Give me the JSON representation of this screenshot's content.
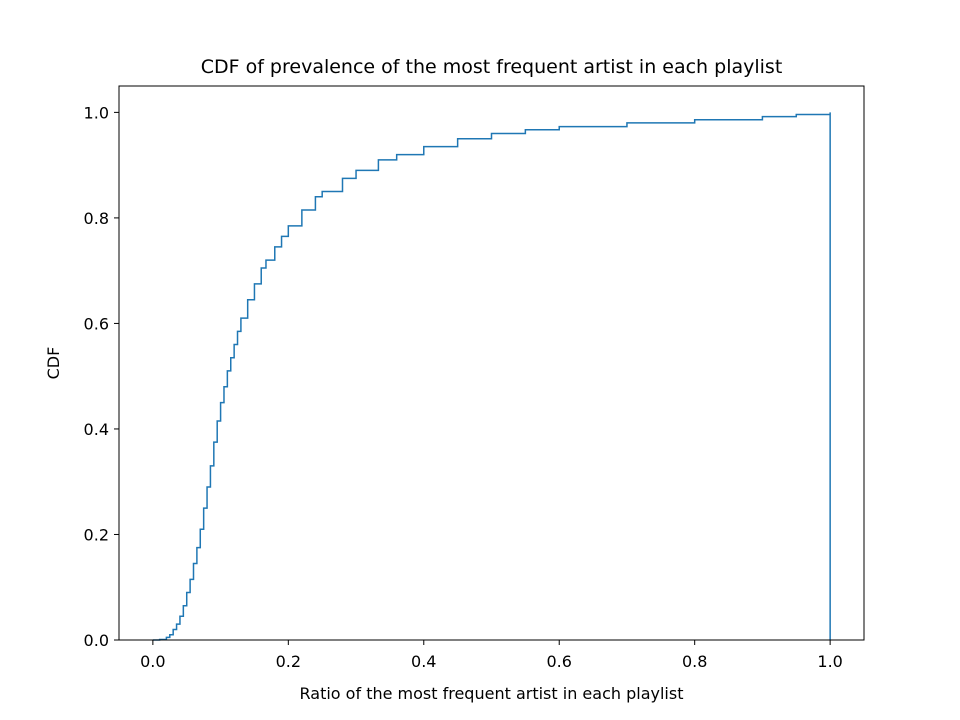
{
  "chart_data": {
    "type": "line",
    "step": true,
    "title": "CDF of prevalence of the most frequent artist in each playlist",
    "xlabel": "Ratio of the most frequent artist in each playlist",
    "ylabel": "CDF",
    "xlim": [
      -0.05,
      1.05
    ],
    "ylim": [
      0.0,
      1.05
    ],
    "grid": false,
    "legend": "none",
    "xticks": [
      0.0,
      0.2,
      0.4,
      0.6,
      0.8,
      1.0
    ],
    "xtick_labels": [
      "0.0",
      "0.2",
      "0.4",
      "0.6",
      "0.8",
      "1.0"
    ],
    "yticks": [
      0.0,
      0.2,
      0.4,
      0.6,
      0.8,
      1.0
    ],
    "ytick_labels": [
      "0.0",
      "0.2",
      "0.4",
      "0.6",
      "0.8",
      "1.0"
    ],
    "series": [
      {
        "color": "#1f77b4",
        "x": [
          0.0,
          0.01,
          0.02,
          0.025,
          0.03,
          0.035,
          0.04,
          0.045,
          0.05,
          0.055,
          0.06,
          0.065,
          0.07,
          0.075,
          0.08,
          0.085,
          0.09,
          0.095,
          0.1,
          0.105,
          0.11,
          0.115,
          0.12,
          0.125,
          0.13,
          0.14,
          0.15,
          0.16,
          0.167,
          0.18,
          0.19,
          0.2,
          0.22,
          0.24,
          0.25,
          0.28,
          0.3,
          0.333,
          0.36,
          0.4,
          0.45,
          0.5,
          0.55,
          0.6,
          0.7,
          0.8,
          0.9,
          0.95,
          1.0,
          1.0
        ],
        "y": [
          0.0,
          0.001,
          0.005,
          0.01,
          0.02,
          0.03,
          0.045,
          0.065,
          0.09,
          0.115,
          0.145,
          0.175,
          0.21,
          0.25,
          0.29,
          0.33,
          0.375,
          0.415,
          0.45,
          0.48,
          0.51,
          0.535,
          0.56,
          0.585,
          0.61,
          0.645,
          0.675,
          0.705,
          0.72,
          0.745,
          0.765,
          0.785,
          0.815,
          0.84,
          0.85,
          0.875,
          0.89,
          0.91,
          0.92,
          0.935,
          0.95,
          0.96,
          0.967,
          0.973,
          0.98,
          0.986,
          0.992,
          0.996,
          1.0,
          0.0
        ]
      }
    ]
  }
}
